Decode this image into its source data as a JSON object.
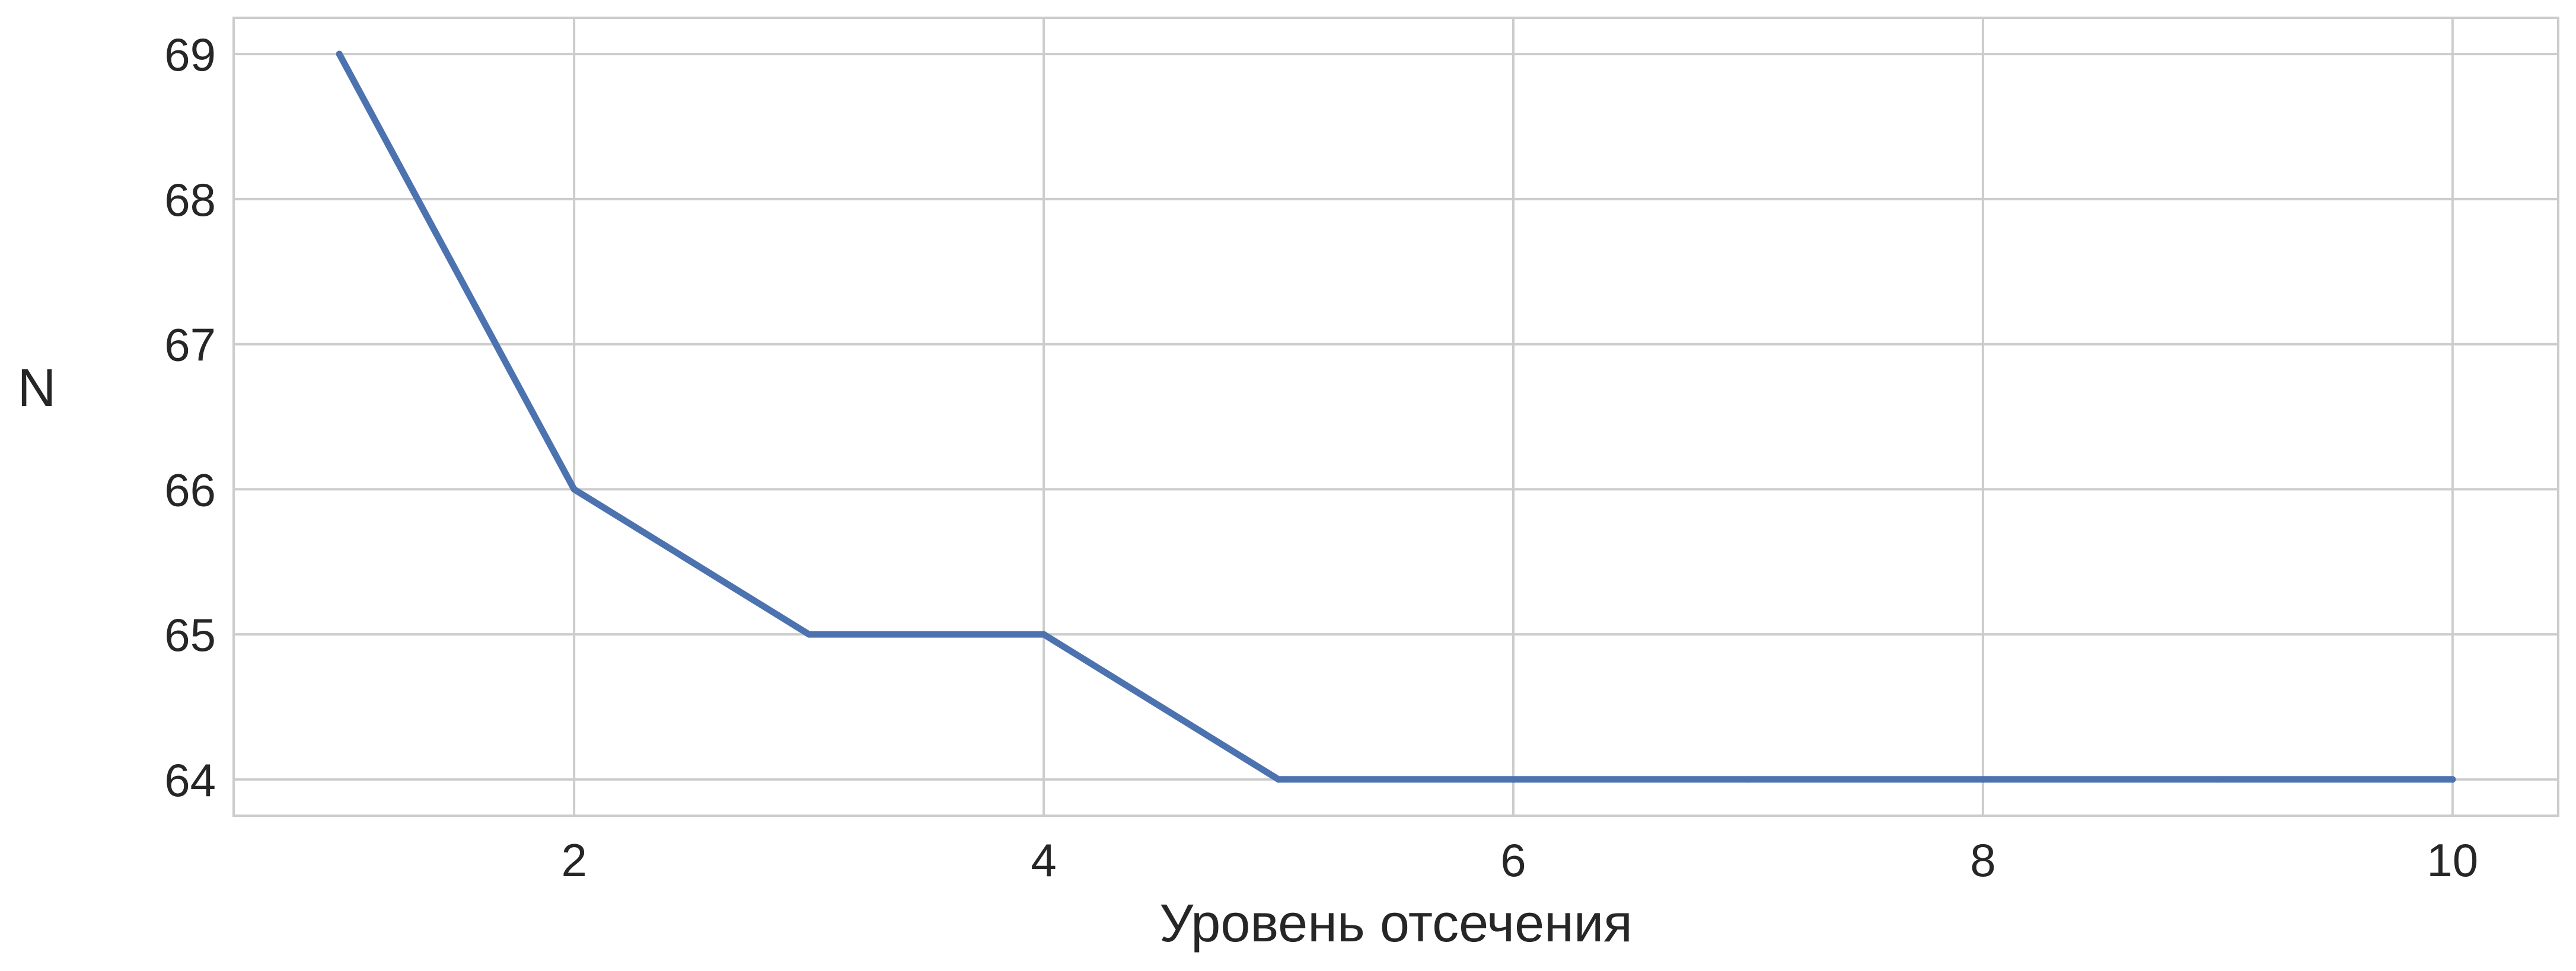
{
  "colors": {
    "background": "#ffffff",
    "grid": "#cccccc",
    "frame": "#cccccc",
    "line": "#4c72b0",
    "text": "#262626"
  },
  "chart_data": {
    "type": "line",
    "title": "",
    "xlabel": "Уровень отсечения",
    "ylabel": "N",
    "xlim": [
      0.55,
      10.45
    ],
    "ylim": [
      63.75,
      69.25
    ],
    "xticks": [
      2,
      4,
      6,
      8,
      10
    ],
    "yticks": [
      64,
      65,
      66,
      67,
      68,
      69
    ],
    "grid": true,
    "legend": "none",
    "series": [
      {
        "x": [
          1,
          2,
          3,
          4,
          5,
          6,
          7,
          8,
          9,
          10
        ],
        "y": [
          69,
          66,
          65,
          65,
          64,
          64,
          64,
          64,
          64,
          64
        ]
      }
    ]
  }
}
